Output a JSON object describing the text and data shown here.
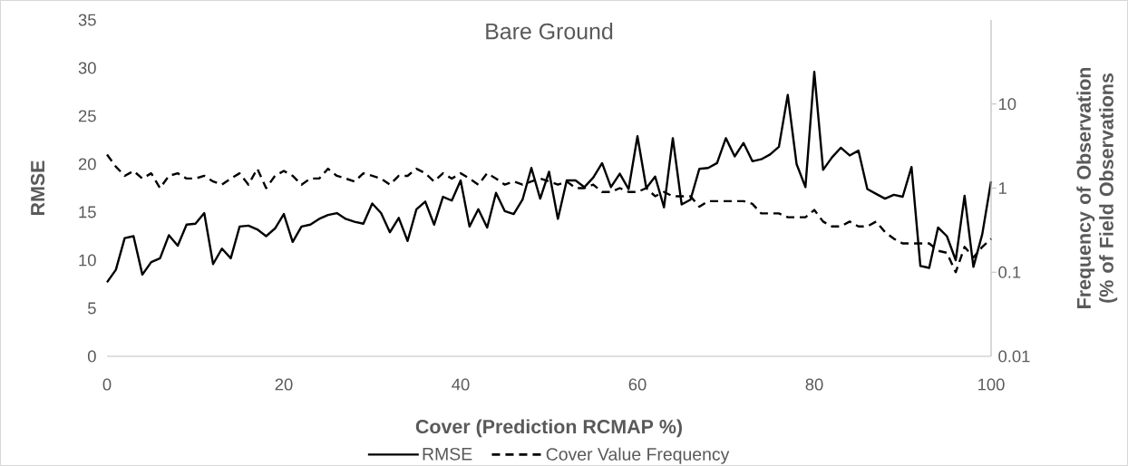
{
  "chart_data": {
    "type": "line",
    "title": "Bare Ground",
    "xlabel": "Cover (Prediction RCMAP %)",
    "ylabel": "RMSE",
    "y2label": "Frequency of Observation (% of Field Observations",
    "x": [
      0,
      1,
      2,
      3,
      4,
      5,
      6,
      7,
      8,
      9,
      10,
      11,
      12,
      13,
      14,
      15,
      16,
      17,
      18,
      19,
      20,
      21,
      22,
      23,
      24,
      25,
      26,
      27,
      28,
      29,
      30,
      31,
      32,
      33,
      34,
      35,
      36,
      37,
      38,
      39,
      40,
      41,
      42,
      43,
      44,
      45,
      46,
      47,
      48,
      49,
      50,
      51,
      52,
      53,
      54,
      55,
      56,
      57,
      58,
      59,
      60,
      61,
      62,
      63,
      64,
      65,
      66,
      67,
      68,
      69,
      70,
      71,
      72,
      73,
      74,
      75,
      76,
      77,
      78,
      79,
      80,
      81,
      82,
      83,
      84,
      85,
      86,
      87,
      88,
      89,
      90,
      91,
      92,
      93,
      94,
      95,
      96,
      97,
      98,
      99,
      100
    ],
    "series": [
      {
        "name": "RMSE",
        "color": "#000000",
        "line_style": "solid",
        "values": [
          7.7,
          9,
          12.3,
          12.5,
          8.5,
          9.8,
          10.2,
          12.6,
          11.5,
          13.7,
          13.8,
          14.9,
          9.6,
          11.2,
          10.2,
          13.5,
          13.6,
          13.2,
          12.5,
          13.3,
          14.8,
          11.9,
          13.5,
          13.7,
          14.3,
          14.7,
          14.9,
          14.3,
          14,
          13.8,
          15.9,
          14.9,
          12.9,
          14.4,
          12,
          15.3,
          16.1,
          13.7,
          16.6,
          16.2,
          18.3,
          13.5,
          15.3,
          13.4,
          17,
          15.1,
          14.8,
          16.3,
          19.6,
          16.4,
          19.2,
          14.3,
          18.3,
          18.3,
          17.6,
          18.6,
          20.1,
          17.6,
          19,
          17.4,
          22.9,
          17.5,
          18.7,
          15.5,
          22.7,
          15.8,
          16.3,
          19.5,
          19.6,
          20.1,
          22.7,
          20.8,
          22.2,
          20.3,
          20.5,
          21,
          21.8,
          27.2,
          20,
          17.6,
          29.6,
          19.4,
          20.7,
          21.7,
          20.9,
          21.4,
          17.4,
          16.9,
          16.4,
          16.8,
          16.6,
          19.7,
          9.4,
          9.2,
          13.4,
          12.5,
          10,
          16.7,
          9.3,
          12.7,
          18.2
        ]
      },
      {
        "name": "Cover Value Frequency",
        "color": "#000000",
        "line_style": "dashed",
        "axis": "y2",
        "values": [
          2.5,
          1.8,
          1.4,
          1.6,
          1.3,
          1.5,
          1.0,
          1.4,
          1.5,
          1.3,
          1.3,
          1.4,
          1.2,
          1.1,
          1.3,
          1.5,
          1.1,
          1.7,
          1.0,
          1.4,
          1.6,
          1.4,
          1.1,
          1.3,
          1.3,
          1.7,
          1.4,
          1.3,
          1.2,
          1.5,
          1.4,
          1.3,
          1.1,
          1.4,
          1.4,
          1.7,
          1.5,
          1.2,
          1.5,
          1.3,
          1.5,
          1.3,
          1.1,
          1.5,
          1.3,
          1.1,
          1.2,
          1.1,
          1.2,
          1.3,
          1.2,
          1.1,
          1.2,
          1.0,
          1.0,
          1.1,
          0.9,
          0.9,
          1.0,
          0.9,
          0.9,
          1.0,
          0.8,
          0.9,
          0.8,
          0.8,
          0.8,
          0.6,
          0.7,
          0.7,
          0.7,
          0.7,
          0.7,
          0.65,
          0.5,
          0.5,
          0.5,
          0.45,
          0.45,
          0.45,
          0.55,
          0.4,
          0.35,
          0.35,
          0.4,
          0.35,
          0.35,
          0.4,
          0.3,
          0.25,
          0.22,
          0.22,
          0.22,
          0.22,
          0.18,
          0.17,
          0.1,
          0.2,
          0.15,
          0.2,
          0.25
        ]
      }
    ],
    "xlim": [
      0,
      100
    ],
    "xticks": [
      0,
      20,
      40,
      60,
      80,
      100
    ],
    "ylim": [
      0,
      35
    ],
    "yticks": [
      0,
      5,
      10,
      15,
      20,
      25,
      30,
      35
    ],
    "y2lim": [
      0.01,
      100
    ],
    "y2ticks": [
      0.01,
      0.1,
      1,
      10
    ],
    "log": "y2",
    "grid": false,
    "legend": "bottom",
    "marker": "none"
  }
}
